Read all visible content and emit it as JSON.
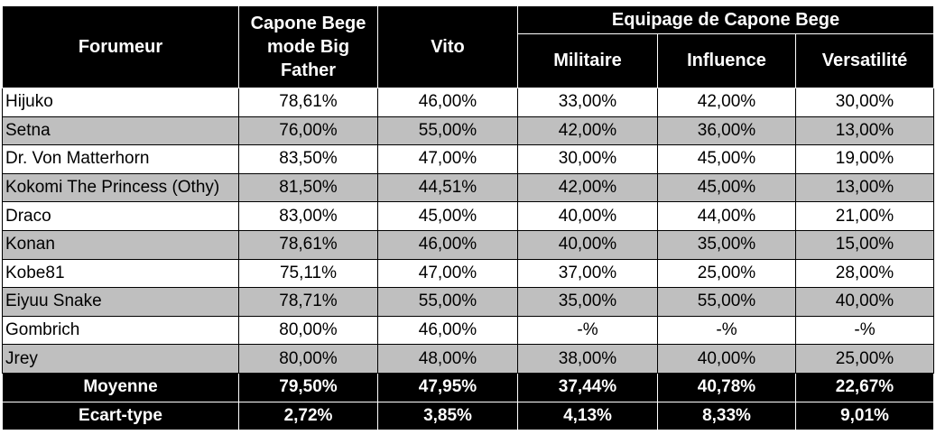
{
  "table": {
    "headers": {
      "forumeur": "Forumeur",
      "capone": "Capone Bege mode Big Father",
      "vito": "Vito",
      "group": "Equipage de Capone Bege",
      "militaire": "Militaire",
      "influence": "Influence",
      "versatilite": "Versatilité"
    },
    "rows": [
      {
        "name": "Hijuko",
        "capone": "78,61%",
        "vito": "46,00%",
        "militaire": "33,00%",
        "influence": "42,00%",
        "versatilite": "30,00%"
      },
      {
        "name": "Setna",
        "capone": "76,00%",
        "vito": "55,00%",
        "militaire": "42,00%",
        "influence": "36,00%",
        "versatilite": "13,00%"
      },
      {
        "name": "Dr. Von Matterhorn",
        "capone": "83,50%",
        "vito": "47,00%",
        "militaire": "30,00%",
        "influence": "45,00%",
        "versatilite": "19,00%"
      },
      {
        "name": "Kokomi The Princess (Othy)",
        "capone": "81,50%",
        "vito": "44,51%",
        "militaire": "42,00%",
        "influence": "45,00%",
        "versatilite": "13,00%"
      },
      {
        "name": "Draco",
        "capone": "83,00%",
        "vito": "45,00%",
        "militaire": "40,00%",
        "influence": "44,00%",
        "versatilite": "21,00%"
      },
      {
        "name": "Konan",
        "capone": "78,61%",
        "vito": "46,00%",
        "militaire": "40,00%",
        "influence": "35,00%",
        "versatilite": "15,00%"
      },
      {
        "name": "Kobe81",
        "capone": "75,11%",
        "vito": "47,00%",
        "militaire": "37,00%",
        "influence": "25,00%",
        "versatilite": "28,00%"
      },
      {
        "name": "Eiyuu Snake",
        "capone": "78,71%",
        "vito": "55,00%",
        "militaire": "35,00%",
        "influence": "55,00%",
        "versatilite": "40,00%"
      },
      {
        "name": "Gombrich",
        "capone": "80,00%",
        "vito": "46,00%",
        "militaire": "-%",
        "influence": "-%",
        "versatilite": "-%"
      },
      {
        "name": "Jrey",
        "capone": "80,00%",
        "vito": "48,00%",
        "militaire": "38,00%",
        "influence": "40,00%",
        "versatilite": "25,00%"
      }
    ],
    "footer": [
      {
        "label": "Moyenne",
        "capone": "79,50%",
        "vito": "47,95%",
        "militaire": "37,44%",
        "influence": "40,78%",
        "versatilite": "22,67%"
      },
      {
        "label": "Ecart-type",
        "capone": "2,72%",
        "vito": "3,85%",
        "militaire": "4,13%",
        "influence": "8,33%",
        "versatilite": "9,01%"
      }
    ],
    "colors": {
      "header_bg": "#000000",
      "header_text": "#ffffff",
      "row_alt_bg": "#bfbfbf",
      "row_bg": "#ffffff"
    }
  }
}
